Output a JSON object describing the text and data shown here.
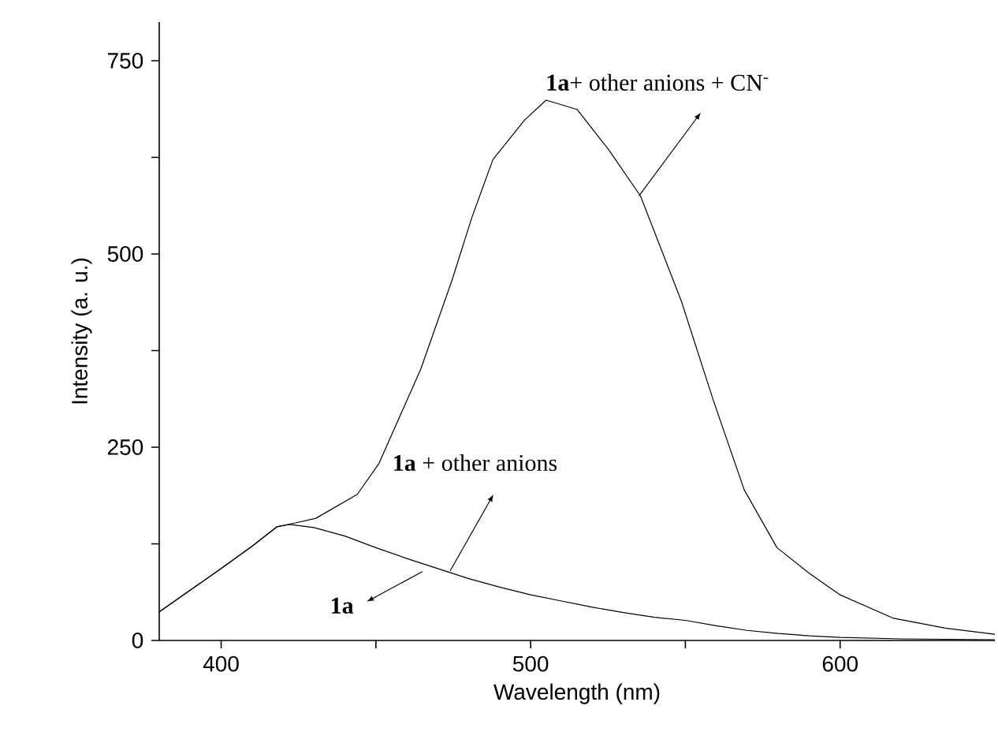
{
  "chart_data": {
    "type": "line",
    "xlabel": "Wavelength (nm)",
    "ylabel": "Intensity (a. u.)",
    "xlim": [
      380,
      650
    ],
    "ylim": [
      0,
      800
    ],
    "xticks": [
      400,
      {
        "value": 450,
        "label": null
      },
      500,
      {
        "value": 550,
        "label": null
      },
      600
    ],
    "yticks": [
      0,
      {
        "value": 125,
        "label": null
      },
      250,
      {
        "value": 375,
        "label": null
      },
      500,
      {
        "value": 625,
        "label": null
      },
      750
    ],
    "x": [
      380,
      390,
      400,
      410,
      418,
      422,
      430,
      440,
      450,
      460,
      470,
      480,
      490,
      500,
      510,
      520,
      530,
      540,
      550,
      560,
      570,
      580,
      590,
      600,
      620,
      650
    ],
    "series": [
      {
        "color": "#000000",
        "values": [
          37,
          65,
          93,
          122,
          147,
          150,
          146,
          135,
          120,
          106,
          93,
          80,
          69,
          59,
          51,
          43,
          36,
          30,
          26,
          19,
          13,
          9,
          6,
          4,
          2,
          1
        ]
      },
      {
        "color": "#000000",
        "x": [
          380,
          390,
          400,
          410,
          418,
          424,
          430.6,
          444,
          451,
          464.5,
          474.6,
          481,
          487.8,
          498,
          505,
          515,
          525,
          535.5,
          548.7,
          559,
          569,
          579.6,
          590,
          600,
          617,
          634,
          650
        ],
        "values": [
          37,
          65,
          93,
          122,
          147,
          152,
          158,
          189,
          229,
          351,
          466,
          547,
          622,
          673,
          699,
          687,
          636,
          575,
          439,
          311,
          195,
          120,
          87,
          59,
          29,
          16,
          8
        ]
      }
    ],
    "annotations": [
      {
        "text": "**1a**",
        "x": 467,
        "y": 93
      },
      {
        "text": "**1a** + other anions",
        "x": 474,
        "y": 90
      },
      {
        "text": "**1a**+ other anions + CN$^{-}$",
        "x": 535,
        "y": 575
      }
    ],
    "grid": false
  }
}
